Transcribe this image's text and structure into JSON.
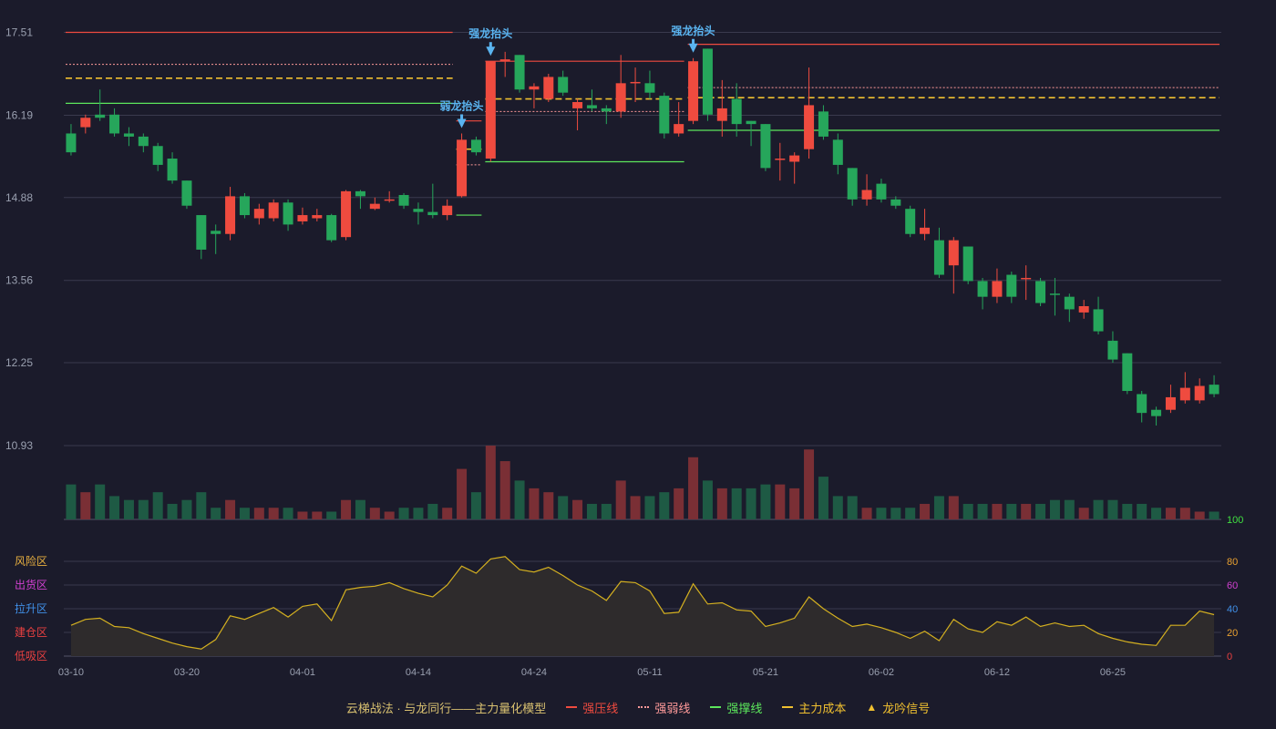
{
  "chart_data": {
    "type": "candlestick",
    "y_ticks": [
      "17.51",
      "16.19",
      "14.88",
      "13.56",
      "12.25",
      "10.93"
    ],
    "y_range": [
      10.93,
      17.51
    ],
    "x_tick_labels": [
      "03-10",
      "03-20",
      "04-01",
      "04-14",
      "04-24",
      "05-11",
      "05-21",
      "06-02",
      "06-12",
      "06-25"
    ],
    "x_tick_index": [
      0,
      8,
      16,
      24,
      32,
      40,
      48,
      56,
      64,
      72
    ],
    "candles": [
      [
        15.9,
        15.6,
        16.05,
        15.55
      ],
      [
        16.0,
        16.15,
        16.2,
        15.9
      ],
      [
        16.2,
        16.15,
        16.6,
        16.1
      ],
      [
        16.2,
        15.9,
        16.3,
        15.85
      ],
      [
        15.9,
        15.85,
        16.0,
        15.7
      ],
      [
        15.85,
        15.7,
        15.9,
        15.6
      ],
      [
        15.7,
        15.4,
        15.75,
        15.3
      ],
      [
        15.5,
        15.15,
        15.6,
        15.1
      ],
      [
        15.15,
        14.75,
        15.15,
        14.7
      ],
      [
        14.6,
        14.05,
        14.6,
        13.9
      ],
      [
        14.35,
        14.3,
        14.45,
        13.98
      ],
      [
        14.3,
        14.9,
        15.05,
        14.2
      ],
      [
        14.9,
        14.6,
        14.95,
        14.55
      ],
      [
        14.55,
        14.7,
        14.78,
        14.45
      ],
      [
        14.55,
        14.8,
        14.85,
        14.5
      ],
      [
        14.8,
        14.45,
        14.85,
        14.35
      ],
      [
        14.5,
        14.6,
        14.72,
        14.45
      ],
      [
        14.55,
        14.6,
        14.7,
        14.5
      ],
      [
        14.6,
        14.2,
        14.62,
        14.17
      ],
      [
        14.25,
        14.98,
        15.0,
        14.2
      ],
      [
        14.98,
        14.9,
        15.0,
        14.7
      ],
      [
        14.7,
        14.78,
        14.88,
        14.68
      ],
      [
        14.85,
        14.85,
        14.98,
        14.8
      ],
      [
        14.92,
        14.75,
        14.95,
        14.7
      ],
      [
        14.7,
        14.65,
        14.8,
        14.45
      ],
      [
        14.65,
        14.6,
        15.1,
        14.55
      ],
      [
        14.6,
        14.75,
        14.85,
        14.52
      ],
      [
        14.9,
        15.8,
        15.9,
        14.88
      ],
      [
        15.8,
        15.6,
        15.85,
        15.55
      ],
      [
        15.5,
        17.05,
        17.05,
        15.45
      ],
      [
        17.05,
        17.08,
        17.2,
        16.8
      ],
      [
        17.15,
        16.6,
        17.15,
        16.55
      ],
      [
        16.6,
        16.65,
        16.7,
        16.3
      ],
      [
        16.45,
        16.8,
        16.85,
        16.4
      ],
      [
        16.8,
        16.55,
        16.9,
        16.5
      ],
      [
        16.3,
        16.4,
        16.45,
        15.95
      ],
      [
        16.35,
        16.3,
        16.6,
        16.25
      ],
      [
        16.3,
        16.25,
        16.35,
        16.05
      ],
      [
        16.25,
        16.7,
        17.15,
        16.15
      ],
      [
        16.7,
        16.72,
        16.95,
        16.4
      ],
      [
        16.7,
        16.55,
        16.9,
        16.45
      ],
      [
        16.5,
        15.9,
        16.55,
        15.82
      ],
      [
        15.9,
        16.05,
        16.4,
        15.85
      ],
      [
        16.1,
        17.05,
        17.1,
        16.05
      ],
      [
        17.25,
        16.2,
        17.25,
        16.1
      ],
      [
        16.1,
        16.3,
        16.75,
        15.85
      ],
      [
        16.45,
        16.05,
        16.7,
        15.85
      ],
      [
        16.1,
        16.05,
        16.1,
        15.7
      ],
      [
        16.05,
        15.35,
        16.05,
        15.3
      ],
      [
        15.5,
        15.5,
        15.75,
        15.15
      ],
      [
        15.45,
        15.55,
        15.6,
        15.1
      ],
      [
        15.65,
        16.35,
        16.95,
        15.5
      ],
      [
        16.25,
        15.85,
        16.35,
        15.8
      ],
      [
        15.8,
        15.4,
        15.9,
        15.25
      ],
      [
        15.35,
        14.85,
        15.35,
        14.75
      ],
      [
        14.85,
        15.0,
        15.25,
        14.75
      ],
      [
        15.1,
        14.85,
        15.18,
        14.8
      ],
      [
        14.85,
        14.75,
        14.9,
        14.7
      ],
      [
        14.7,
        14.3,
        14.75,
        14.25
      ],
      [
        14.3,
        14.4,
        14.7,
        14.2
      ],
      [
        14.2,
        13.65,
        14.4,
        13.6
      ],
      [
        13.8,
        14.2,
        14.25,
        13.35
      ],
      [
        14.1,
        13.55,
        14.1,
        13.5
      ],
      [
        13.55,
        13.3,
        13.6,
        13.1
      ],
      [
        13.3,
        13.55,
        13.75,
        13.2
      ],
      [
        13.65,
        13.3,
        13.7,
        13.2
      ],
      [
        13.6,
        13.6,
        13.8,
        13.25
      ],
      [
        13.55,
        13.2,
        13.6,
        13.15
      ],
      [
        13.35,
        13.33,
        13.6,
        13.0
      ],
      [
        13.3,
        13.1,
        13.35,
        12.9
      ],
      [
        13.05,
        13.15,
        13.25,
        12.95
      ],
      [
        13.1,
        12.75,
        13.3,
        12.7
      ],
      [
        12.6,
        12.3,
        12.75,
        12.25
      ],
      [
        12.4,
        11.8,
        12.4,
        11.75
      ],
      [
        11.75,
        11.45,
        11.8,
        11.3
      ],
      [
        11.5,
        11.4,
        11.55,
        11.25
      ],
      [
        11.5,
        11.7,
        11.9,
        11.45
      ],
      [
        11.65,
        11.85,
        12.1,
        11.6
      ],
      [
        11.65,
        11.88,
        12.0,
        11.6
      ],
      [
        11.9,
        11.75,
        12.05,
        11.7
      ]
    ],
    "volume": [
      9,
      7,
      9,
      6,
      5,
      5,
      7,
      4,
      5,
      7,
      3,
      5,
      3,
      3,
      3,
      3,
      2,
      2,
      2,
      5,
      5,
      3,
      2,
      3,
      3,
      4,
      3,
      13,
      7,
      19,
      15,
      10,
      8,
      7,
      6,
      5,
      4,
      4,
      10,
      6,
      6,
      7,
      8,
      16,
      10,
      8,
      8,
      8,
      9,
      9,
      8,
      18,
      11,
      6,
      6,
      3,
      3,
      3,
      3,
      4,
      6,
      6,
      4,
      4,
      4,
      4,
      4,
      4,
      5,
      5,
      3,
      5,
      5,
      4,
      4,
      3,
      3,
      3,
      2,
      2
    ],
    "indicator": [
      26,
      31,
      32,
      25,
      24,
      19,
      15,
      11,
      8,
      6,
      14,
      34,
      31,
      36,
      41,
      33,
      42,
      44,
      30,
      56,
      58,
      59,
      62,
      57,
      53,
      50,
      60,
      76,
      70,
      82,
      84,
      73,
      71,
      75,
      68,
      60,
      55,
      47,
      63,
      62,
      55,
      36,
      37,
      61,
      44,
      45,
      39,
      38,
      25,
      28,
      32,
      50,
      40,
      32,
      25,
      27,
      24,
      20,
      15,
      21,
      13,
      31,
      23,
      20,
      29,
      26,
      33,
      25,
      28,
      25,
      26,
      19,
      15,
      12,
      10,
      9,
      26,
      26,
      38,
      35
    ],
    "indicator_zones": [
      "风险区",
      "出货区",
      "拉升区",
      "建仓区",
      "低吸区"
    ],
    "indicator_zone_colors": [
      "#e8b040",
      "#d040d0",
      "#4090e8",
      "#e84040",
      "#e84040"
    ],
    "indicator_right_ticks": [
      "100",
      "80",
      "60",
      "40",
      "20",
      "0"
    ],
    "indicator_right_tick_colors": [
      "#40e040",
      "#e8a030",
      "#d040d0",
      "#4090e8",
      "#e8a030",
      "#e84040"
    ],
    "levels": [
      {
        "type": "strong_pressure",
        "value": 17.51,
        "from": 0,
        "to": 26
      },
      {
        "type": "strong_weak",
        "value": 17.0,
        "from": 0,
        "to": 26
      },
      {
        "type": "main_cost",
        "value": 16.78,
        "from": 0,
        "to": 26
      },
      {
        "type": "strong_support",
        "value": 16.38,
        "from": 0,
        "to": 26
      },
      {
        "type": "strong_pressure",
        "value": 16.1,
        "from": 27,
        "to": 28
      },
      {
        "type": "strong_weak",
        "value": 15.4,
        "from": 27,
        "to": 28
      },
      {
        "type": "main_cost",
        "value": 15.65,
        "from": 27,
        "to": 28
      },
      {
        "type": "strong_support",
        "value": 14.6,
        "from": 27,
        "to": 28
      },
      {
        "type": "strong_pressure",
        "value": 17.05,
        "from": 29,
        "to": 42
      },
      {
        "type": "strong_weak",
        "value": 16.25,
        "from": 29,
        "to": 42
      },
      {
        "type": "main_cost",
        "value": 16.45,
        "from": 29,
        "to": 42
      },
      {
        "type": "strong_support",
        "value": 15.45,
        "from": 29,
        "to": 42
      },
      {
        "type": "strong_pressure",
        "value": 17.32,
        "from": 43,
        "to": 79
      },
      {
        "type": "strong_weak",
        "value": 16.63,
        "from": 43,
        "to": 79
      },
      {
        "type": "main_cost",
        "value": 16.47,
        "from": 43,
        "to": 79
      },
      {
        "type": "strong_support",
        "value": 15.95,
        "from": 43,
        "to": 79
      }
    ],
    "signals": [
      {
        "index": 27,
        "label": "弱龙抬头"
      },
      {
        "index": 29,
        "label": "强龙抬头"
      },
      {
        "index": 43,
        "label": "强龙抬头"
      }
    ],
    "legend": {
      "title": "云梯战法 · 与龙同行——主力量化模型",
      "items": [
        {
          "label": "强压线",
          "color": "#ef4b3f",
          "style": "solid"
        },
        {
          "label": "强弱线",
          "color": "#ff9a9a",
          "style": "dotted"
        },
        {
          "label": "强撑线",
          "color": "#5ce65c",
          "style": "solid"
        },
        {
          "label": "主力成本",
          "color": "#f0c030",
          "style": "dashed"
        },
        {
          "label": "龙吟信号",
          "color": "#f0c030",
          "style": "triangle"
        }
      ]
    },
    "colors": {
      "up": "#ef4b3f",
      "down": "#26a65b",
      "vol_up": "#7a2f35",
      "vol_down": "#1e5a44",
      "indicator_line": "#d4b020",
      "indicator_fill": "#2e2b2c",
      "signal": "#5ab4f0",
      "grid": "#3a3a4e",
      "axis_text": "#9aa0b0"
    }
  }
}
